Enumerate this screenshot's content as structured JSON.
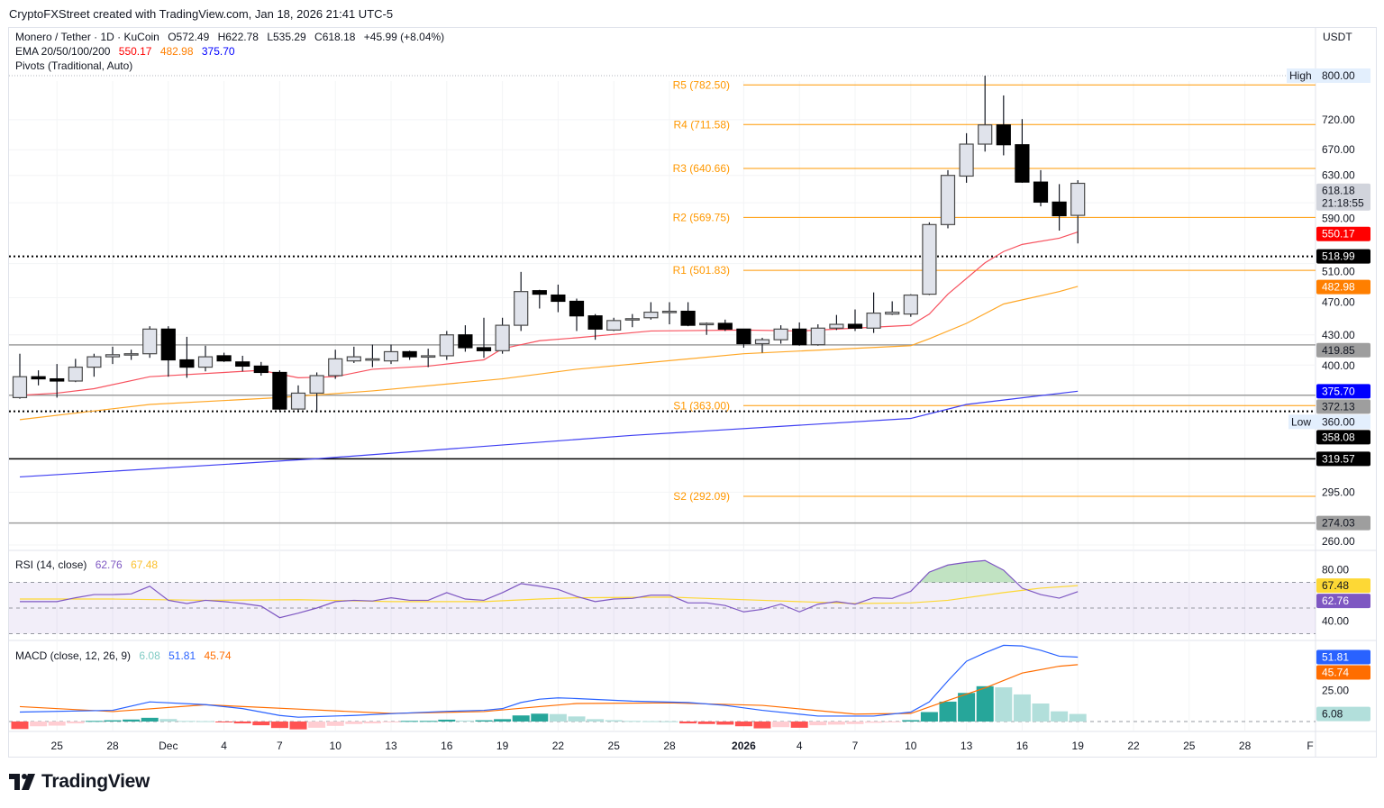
{
  "header": {
    "credit": "CryptoFXStreet created with TradingView.com, Jan 18, 2026 21:41 UTC-5",
    "currency": "USDT"
  },
  "legend": {
    "symbol": "Monero / Tether · 1D · KuCoin",
    "open": "O572.49",
    "high": "H622.78",
    "low": "L535.29",
    "close": "C618.18",
    "change": "+45.99 (+8.04%)",
    "ema_label": "EMA 20/50/100/200",
    "ema20": "550.17",
    "ema50": "482.98",
    "ema200": "375.70",
    "pivots_label": "Pivots (Traditional, Auto)",
    "rsi_label": "RSI (14, close)",
    "rsi_value": "62.76",
    "rsi_ma_value": "67.48",
    "macd_label": "MACD (close, 12, 26, 9)",
    "macd_hist_value": "6.08",
    "macd_value": "51.81",
    "macd_signal_value": "45.74"
  },
  "colors": {
    "ema20": "#f7525f",
    "ema50": "#ffa726",
    "ema200": "#3f3ff2",
    "pivot": "#ff9800",
    "rsi": "#7e57c2",
    "rsi_ma": "#fdd835",
    "macd": "#2962ff",
    "signal": "#ff6d00",
    "hist_up_strong": "#26a69a",
    "hist_up_weak": "#b2dfdb",
    "hist_down_strong": "#ff5252",
    "hist_down_weak": "#ffcdd2",
    "bull_body": "#e0e3eb",
    "bear_body": "#000000"
  },
  "chart_data": {
    "type": "candlestick",
    "price_scale": "log",
    "grid": true,
    "price_ticks": [
      "720.00",
      "670.00",
      "630.00",
      "590.00",
      "510.00",
      "470.00",
      "430.00",
      "400.00",
      "295.00",
      "260.00"
    ],
    "high_marker": {
      "label": "High",
      "value": "800.00"
    },
    "low_marker": {
      "label": "Low",
      "value": "360.00"
    },
    "time_labels": [
      {
        "label": "25",
        "date": "2025-11-25"
      },
      {
        "label": "28",
        "date": "2025-11-28"
      },
      {
        "label": "Dec",
        "date": "2025-12-01"
      },
      {
        "label": "4",
        "date": "2025-12-04"
      },
      {
        "label": "7",
        "date": "2025-12-07"
      },
      {
        "label": "10",
        "date": "2025-12-10"
      },
      {
        "label": "13",
        "date": "2025-12-13"
      },
      {
        "label": "16",
        "date": "2025-12-16"
      },
      {
        "label": "19",
        "date": "2025-12-19"
      },
      {
        "label": "22",
        "date": "2025-12-22"
      },
      {
        "label": "25",
        "date": "2025-12-25"
      },
      {
        "label": "28",
        "date": "2025-12-28"
      },
      {
        "label": "2026",
        "date": "2026-01-01",
        "bold": true
      },
      {
        "label": "4",
        "date": "2026-01-04"
      },
      {
        "label": "7",
        "date": "2026-01-07"
      },
      {
        "label": "10",
        "date": "2026-01-10"
      },
      {
        "label": "13",
        "date": "2026-01-13"
      },
      {
        "label": "16",
        "date": "2026-01-16"
      },
      {
        "label": "19",
        "date": "2026-01-19"
      },
      {
        "label": "22",
        "date": "2026-01-22"
      },
      {
        "label": "25",
        "date": "2026-01-25"
      },
      {
        "label": "28",
        "date": "2026-01-28"
      },
      {
        "label": "F",
        "date": "2026-02-01"
      }
    ],
    "candles_columns": [
      "date",
      "open",
      "high",
      "low",
      "close"
    ],
    "candles": [
      [
        "2025-11-23",
        370,
        411,
        369,
        389
      ],
      [
        "2025-11-24",
        389,
        395,
        381,
        387
      ],
      [
        "2025-11-25",
        387,
        401,
        370,
        385
      ],
      [
        "2025-11-26",
        385,
        406,
        384,
        398
      ],
      [
        "2025-11-27",
        398,
        411,
        389,
        408
      ],
      [
        "2025-11-28",
        408,
        418,
        401,
        410
      ],
      [
        "2025-11-29",
        410,
        415,
        405,
        411
      ],
      [
        "2025-11-30",
        411,
        439,
        407,
        436
      ],
      [
        "2025-12-01",
        436,
        439,
        389,
        405
      ],
      [
        "2025-12-02",
        405,
        428,
        388,
        398
      ],
      [
        "2025-12-03",
        398,
        419,
        394,
        408
      ],
      [
        "2025-12-04",
        409,
        412,
        403,
        404
      ],
      [
        "2025-12-05",
        403,
        409,
        394,
        399
      ],
      [
        "2025-12-06",
        399,
        403,
        390,
        393
      ],
      [
        "2025-12-07",
        393,
        395,
        359,
        360
      ],
      [
        "2025-12-08",
        360,
        381,
        359,
        374
      ],
      [
        "2025-12-09",
        374,
        393,
        357,
        390
      ],
      [
        "2025-12-10",
        390,
        415,
        387,
        406
      ],
      [
        "2025-12-11",
        404,
        418,
        402,
        408
      ],
      [
        "2025-12-12",
        405,
        420,
        398,
        406
      ],
      [
        "2025-12-13",
        404,
        420,
        401,
        413
      ],
      [
        "2025-12-14",
        413,
        414,
        405,
        408
      ],
      [
        "2025-12-15",
        408,
        416,
        398,
        409
      ],
      [
        "2025-12-16",
        409,
        434,
        405,
        430
      ],
      [
        "2025-12-17",
        430,
        440,
        413,
        417
      ],
      [
        "2025-12-18",
        417,
        448,
        407,
        414
      ],
      [
        "2025-12-19",
        414,
        448,
        411,
        440
      ],
      [
        "2025-12-20",
        440,
        500,
        434,
        477
      ],
      [
        "2025-12-21",
        478,
        479,
        458,
        474
      ],
      [
        "2025-12-22",
        473,
        485,
        454,
        466
      ],
      [
        "2025-12-23",
        466,
        469,
        434,
        450
      ],
      [
        "2025-12-24",
        450,
        452,
        425,
        436
      ],
      [
        "2025-12-25",
        435,
        448,
        434,
        445
      ],
      [
        "2025-12-26",
        446,
        452,
        438,
        447
      ],
      [
        "2025-12-27",
        448,
        465,
        446,
        454
      ],
      [
        "2025-12-28",
        454,
        465,
        441,
        455
      ],
      [
        "2025-12-29",
        455,
        465,
        439,
        440
      ],
      [
        "2025-12-30",
        441,
        443,
        430,
        442
      ],
      [
        "2025-12-31",
        442,
        446,
        434,
        436
      ],
      [
        "2026-01-01",
        436,
        436,
        417,
        421
      ],
      [
        "2026-01-02",
        421,
        427,
        412,
        425
      ],
      [
        "2026-01-03",
        425,
        440,
        421,
        436
      ],
      [
        "2026-01-04",
        436,
        443,
        419,
        420
      ],
      [
        "2026-01-05",
        420,
        441,
        419,
        437
      ],
      [
        "2026-01-06",
        437,
        451,
        435,
        441
      ],
      [
        "2026-01-07",
        441,
        457,
        434,
        437
      ],
      [
        "2026-01-08",
        437,
        476,
        432,
        453
      ],
      [
        "2026-01-09",
        452,
        466,
        451,
        454
      ],
      [
        "2026-01-10",
        452,
        474,
        449,
        473
      ],
      [
        "2026-01-11",
        474,
        563,
        473,
        560
      ],
      [
        "2026-01-12",
        560,
        638,
        555,
        630
      ],
      [
        "2026-01-13",
        629,
        697,
        619,
        679
      ],
      [
        "2026-01-14",
        679,
        800,
        667,
        711
      ],
      [
        "2026-01-15",
        711,
        763,
        661,
        678
      ],
      [
        "2026-01-16",
        678,
        721,
        619,
        620
      ],
      [
        "2026-01-17",
        620,
        638,
        585,
        591
      ],
      [
        "2026-01-18",
        591,
        617,
        552,
        572
      ],
      [
        "2026-01-19",
        572.49,
        622.78,
        535.29,
        618.18
      ]
    ],
    "ema20": [
      [
        "2025-11-23",
        372
      ],
      [
        "2025-11-25",
        374
      ],
      [
        "2025-11-27",
        378
      ],
      [
        "2025-11-30",
        389
      ],
      [
        "2025-12-06",
        395
      ],
      [
        "2025-12-08",
        388
      ],
      [
        "2025-12-10",
        389
      ],
      [
        "2025-12-12",
        396
      ],
      [
        "2025-12-15",
        399
      ],
      [
        "2025-12-18",
        405
      ],
      [
        "2025-12-19",
        416
      ],
      [
        "2025-12-21",
        424
      ],
      [
        "2025-12-23",
        427
      ],
      [
        "2025-12-27",
        434
      ],
      [
        "2026-01-01",
        435
      ],
      [
        "2026-01-04",
        434
      ],
      [
        "2026-01-10",
        440
      ],
      [
        "2026-01-11",
        452
      ],
      [
        "2026-01-12",
        474
      ],
      [
        "2026-01-14",
        511
      ],
      [
        "2026-01-15",
        525
      ],
      [
        "2026-01-16",
        534
      ],
      [
        "2026-01-18",
        542
      ],
      [
        "2026-01-19",
        550.17
      ]
    ],
    "ema50": [
      [
        "2025-11-23",
        351
      ],
      [
        "2025-11-30",
        364
      ],
      [
        "2025-12-07",
        370
      ],
      [
        "2025-12-12",
        376
      ],
      [
        "2025-12-19",
        387
      ],
      [
        "2025-12-23",
        396
      ],
      [
        "2026-01-01",
        411
      ],
      [
        "2026-01-10",
        419
      ],
      [
        "2026-01-11",
        426
      ],
      [
        "2026-01-13",
        442
      ],
      [
        "2026-01-15",
        463
      ],
      [
        "2026-01-18",
        477
      ],
      [
        "2026-01-19",
        482.98
      ]
    ],
    "ema200": [
      [
        "2025-11-23",
        306
      ],
      [
        "2025-12-09",
        319.6
      ],
      [
        "2025-12-26",
        338
      ],
      [
        "2026-01-10",
        352
      ],
      [
        "2026-01-13",
        364
      ],
      [
        "2026-01-19",
        375.7
      ]
    ],
    "pivots": [
      {
        "label": "R5",
        "value": 782.5,
        "text": "R5 (782.50)"
      },
      {
        "label": "R4",
        "value": 711.58,
        "text": "R4 (711.58)"
      },
      {
        "label": "R3",
        "value": 640.66,
        "text": "R3 (640.66)"
      },
      {
        "label": "R2",
        "value": 569.75,
        "text": "R2 (569.75)"
      },
      {
        "label": "R1",
        "value": 501.83,
        "text": "R1 (501.83)"
      },
      {
        "label": "S1",
        "value": 363.0,
        "text": "S1 (363.00)"
      },
      {
        "label": "S2",
        "value": 292.09,
        "text": "S2 (292.09)"
      }
    ],
    "horizontal_lines": [
      {
        "value": 518.99,
        "style": "dotted",
        "color": "#000000",
        "badge": "518.99"
      },
      {
        "value": 419.85,
        "style": "solid",
        "color": "#9e9e9e",
        "badge": "419.85"
      },
      {
        "value": 372.13,
        "style": "solid",
        "color": "#9e9e9e",
        "badge": "372.13"
      },
      {
        "value": 358.08,
        "style": "dotted",
        "color": "#000000",
        "badge": "358.08"
      },
      {
        "value": 319.57,
        "style": "solid",
        "color": "#000000",
        "badge": "319.57"
      },
      {
        "value": 274.03,
        "style": "solid",
        "color": "#9e9e9e",
        "badge": "274.03"
      }
    ],
    "price_badges": [
      {
        "value": 618.18,
        "text": "618.18",
        "sub": "21:18:55",
        "bg": "#d1d4dc",
        "fg": "#131722"
      },
      {
        "value": 550.17,
        "text": "550.17",
        "bg": "#ff0000",
        "fg": "#ffffff"
      },
      {
        "value": 482.98,
        "text": "482.98",
        "bg": "#ff7f00",
        "fg": "#ffffff"
      },
      {
        "value": 375.7,
        "text": "375.70",
        "bg": "#0000ff",
        "fg": "#ffffff"
      }
    ],
    "rsi": {
      "range": [
        20,
        90
      ],
      "bands": [
        30,
        50,
        70
      ],
      "ticks": [
        "80.00",
        "40.00"
      ],
      "values": [
        55,
        55,
        55,
        58,
        60.5,
        60.5,
        61,
        67,
        56,
        53.5,
        56,
        55,
        53.5,
        51.5,
        42.5,
        46,
        50,
        55,
        56,
        55.5,
        58,
        56,
        56,
        62,
        57,
        56,
        62,
        69,
        67,
        64.5,
        59,
        55,
        57,
        57.5,
        60,
        60,
        54,
        54,
        52,
        47,
        49,
        53,
        47,
        53,
        55,
        53,
        58,
        57.5,
        63,
        78,
        83.5,
        85.6,
        87,
        79.5,
        65.5,
        60.5,
        57.7,
        62.76
      ],
      "ma": [
        [
          "2025-11-23",
          57
        ],
        [
          "2025-11-28",
          57
        ],
        [
          "2025-12-03",
          56
        ],
        [
          "2025-12-08",
          56.5
        ],
        [
          "2025-12-13",
          55
        ],
        [
          "2025-12-18",
          55
        ],
        [
          "2025-12-21",
          57
        ],
        [
          "2025-12-23",
          58
        ],
        [
          "2025-12-28",
          58.5
        ],
        [
          "2026-01-02",
          56
        ],
        [
          "2026-01-07",
          53.5
        ],
        [
          "2026-01-10",
          54
        ],
        [
          "2026-01-12",
          56
        ],
        [
          "2026-01-15",
          62
        ],
        [
          "2026-01-17",
          65.5
        ],
        [
          "2026-01-19",
          67.48
        ]
      ],
      "badges": [
        {
          "text": "67.48",
          "bg": "#fdd835",
          "fg": "#131722",
          "value": 67.48
        },
        {
          "text": "62.76",
          "bg": "#7e57c2",
          "fg": "#ffffff",
          "value": 62.76
        }
      ]
    },
    "macd": {
      "ticks": [
        "25.00"
      ],
      "histogram": [
        -6,
        -3.8,
        -3.3,
        -1.5,
        0.5,
        1,
        1.6,
        3,
        2,
        0.5,
        0.3,
        -0.5,
        -1.5,
        -3,
        -5.2,
        -6.3,
        -5,
        -3.5,
        -2,
        -1.5,
        -0.5,
        0.5,
        0.5,
        1.5,
        0.8,
        1,
        1.9,
        4.9,
        6.3,
        6,
        4.1,
        1.9,
        1.1,
        0.5,
        0.3,
        0.2,
        -1.5,
        -2,
        -2.5,
        -3.8,
        -5.5,
        -4.5,
        -5,
        -3,
        -2.5,
        -2,
        -1,
        -0.3,
        1.1,
        7.6,
        16,
        23,
        28.4,
        27.5,
        21.8,
        14.5,
        8.2,
        6.08
      ],
      "macd_line": [
        [
          "2025-11-23",
          7.6
        ],
        [
          "2025-11-28",
          9
        ],
        [
          "2025-11-30",
          15.8
        ],
        [
          "2025-12-03",
          13.6
        ],
        [
          "2025-12-05",
          10.4
        ],
        [
          "2025-12-07",
          4.9
        ],
        [
          "2025-12-08",
          3.5
        ],
        [
          "2025-12-11",
          4.9
        ],
        [
          "2025-12-13",
          6.3
        ],
        [
          "2025-12-16",
          8.2
        ],
        [
          "2025-12-18",
          9
        ],
        [
          "2025-12-19",
          10.4
        ],
        [
          "2025-12-20",
          15.3
        ],
        [
          "2025-12-21",
          18
        ],
        [
          "2025-12-22",
          19
        ],
        [
          "2025-12-23",
          18.5
        ],
        [
          "2025-12-26",
          16.4
        ],
        [
          "2025-12-29",
          15.3
        ],
        [
          "2025-12-31",
          13
        ],
        [
          "2026-01-02",
          9
        ],
        [
          "2026-01-05",
          4.4
        ],
        [
          "2026-01-08",
          4.4
        ],
        [
          "2026-01-10",
          7.6
        ],
        [
          "2026-01-11",
          15.8
        ],
        [
          "2026-01-12",
          32.7
        ],
        [
          "2026-01-13",
          48.5
        ],
        [
          "2026-01-14",
          55.3
        ],
        [
          "2026-01-15",
          61.3
        ],
        [
          "2026-01-16",
          60.8
        ],
        [
          "2026-01-17",
          57.3
        ],
        [
          "2026-01-18",
          52.6
        ],
        [
          "2026-01-19",
          51.81
        ]
      ],
      "signal_line": [
        [
          "2025-11-23",
          12
        ],
        [
          "2025-11-28",
          8
        ],
        [
          "2025-12-03",
          13.5
        ],
        [
          "2025-12-08",
          10
        ],
        [
          "2025-12-13",
          6.5
        ],
        [
          "2025-12-18",
          8
        ],
        [
          "2025-12-21",
          12
        ],
        [
          "2025-12-23",
          14.5
        ],
        [
          "2025-12-28",
          15
        ],
        [
          "2026-01-02",
          13
        ],
        [
          "2026-01-07",
          6
        ],
        [
          "2026-01-10",
          6.5
        ],
        [
          "2026-01-12",
          17
        ],
        [
          "2026-01-14",
          27
        ],
        [
          "2026-01-16",
          39
        ],
        [
          "2026-01-18",
          44.5
        ],
        [
          "2026-01-19",
          45.74
        ]
      ],
      "badges": [
        {
          "text": "51.81",
          "bg": "#2962ff",
          "fg": "#ffffff",
          "value": 51.81
        },
        {
          "text": "45.74",
          "bg": "#ff6d00",
          "fg": "#ffffff",
          "value": 45.74
        },
        {
          "text": "6.08",
          "bg": "#b2dfdb",
          "fg": "#131722",
          "value": 6.08
        }
      ]
    }
  },
  "footer": {
    "brand": "TradingView"
  }
}
